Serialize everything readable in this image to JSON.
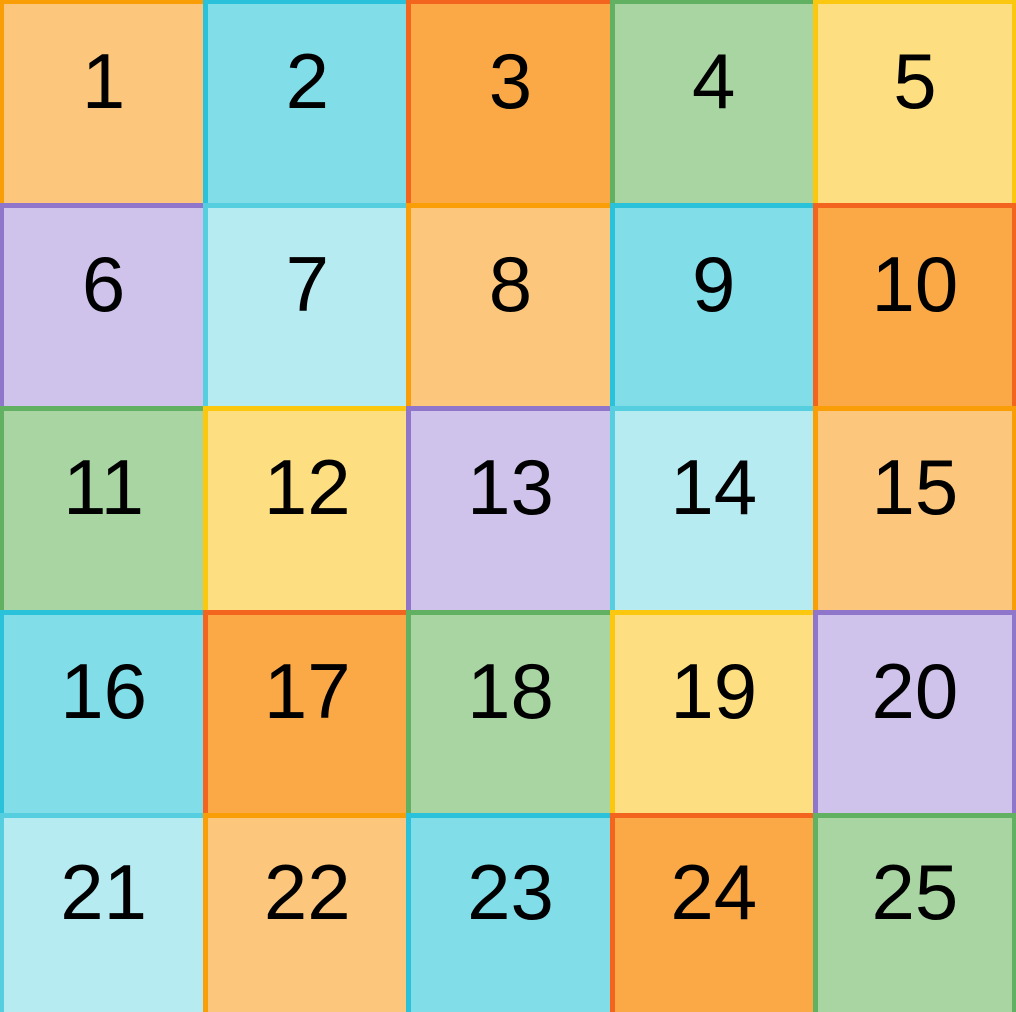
{
  "app": {
    "description": "5x5 grid of numbered colored tiles"
  },
  "grid": {
    "rows": 5,
    "cols": 5,
    "text_color": "#000000",
    "palette": {
      "light_orange": {
        "fill": "#FCC77C",
        "border": "#F99E06"
      },
      "cyan": {
        "fill": "#81DDE8",
        "border": "#29C2DA"
      },
      "orange": {
        "fill": "#FBA846",
        "border": "#F3641F"
      },
      "green": {
        "fill": "#A8D5A2",
        "border": "#62B062"
      },
      "yellow": {
        "fill": "#FDDF82",
        "border": "#FBC70F"
      },
      "purple": {
        "fill": "#D0C3EB",
        "border": "#8F76CB"
      },
      "light_cyan": {
        "fill": "#B6EBF2",
        "border": "#55CEDF"
      }
    },
    "cells": [
      {
        "number": "1",
        "family": "light_orange"
      },
      {
        "number": "2",
        "family": "cyan"
      },
      {
        "number": "3",
        "family": "orange"
      },
      {
        "number": "4",
        "family": "green"
      },
      {
        "number": "5",
        "family": "yellow"
      },
      {
        "number": "6",
        "family": "purple"
      },
      {
        "number": "7",
        "family": "light_cyan"
      },
      {
        "number": "8",
        "family": "light_orange"
      },
      {
        "number": "9",
        "family": "cyan"
      },
      {
        "number": "10",
        "family": "orange"
      },
      {
        "number": "11",
        "family": "green"
      },
      {
        "number": "12",
        "family": "yellow"
      },
      {
        "number": "13",
        "family": "purple"
      },
      {
        "number": "14",
        "family": "light_cyan"
      },
      {
        "number": "15",
        "family": "light_orange"
      },
      {
        "number": "16",
        "family": "cyan"
      },
      {
        "number": "17",
        "family": "orange"
      },
      {
        "number": "18",
        "family": "green"
      },
      {
        "number": "19",
        "family": "yellow"
      },
      {
        "number": "20",
        "family": "purple"
      },
      {
        "number": "21",
        "family": "light_cyan"
      },
      {
        "number": "22",
        "family": "light_orange"
      },
      {
        "number": "23",
        "family": "cyan"
      },
      {
        "number": "24",
        "family": "orange"
      },
      {
        "number": "25",
        "family": "green"
      }
    ]
  }
}
